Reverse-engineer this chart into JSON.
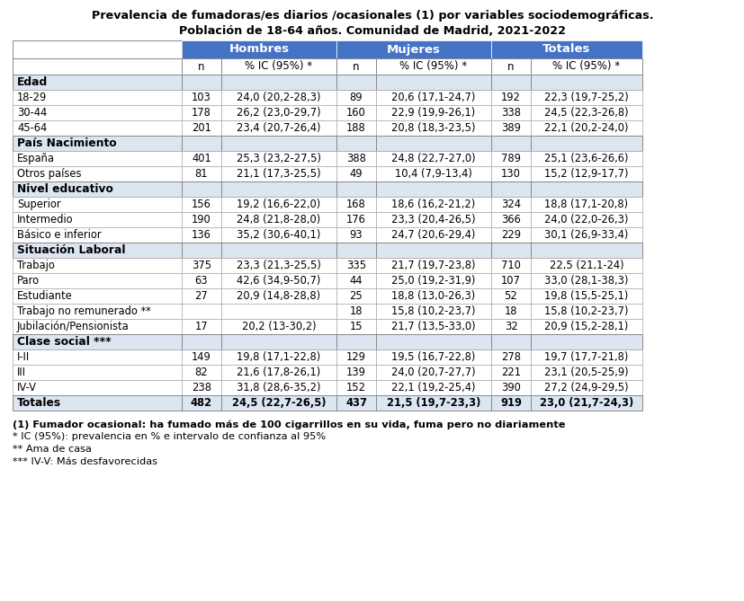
{
  "title_line1": "Prevalencia de fumadoras/es diarios /ocasionales (1) por variables sociodemográficas.",
  "title_line2": "Población de 18-64 años. Comunidad de Madrid, 2021-2022",
  "col_header_bg": "#4472c4",
  "col_header_fg": "#ffffff",
  "section_bg": "#dce6f1",
  "totals_bg": "#dce6f1",
  "section_rows": [
    {
      "label": "Edad",
      "is_section": true
    },
    {
      "label": "18-29",
      "is_section": false,
      "hombres_n": "103",
      "hombres_ic": "24,0 (20,2-28,3)",
      "mujeres_n": "89",
      "mujeres_ic": "20,6 (17,1-24,7)",
      "totales_n": "192",
      "totales_ic": "22,3 (19,7-25,2)"
    },
    {
      "label": "30-44",
      "is_section": false,
      "hombres_n": "178",
      "hombres_ic": "26,2 (23,0-29,7)",
      "mujeres_n": "160",
      "mujeres_ic": "22,9 (19,9-26,1)",
      "totales_n": "338",
      "totales_ic": "24,5 (22,3-26,8)"
    },
    {
      "label": "45-64",
      "is_section": false,
      "hombres_n": "201",
      "hombres_ic": "23,4 (20,7-26,4)",
      "mujeres_n": "188",
      "mujeres_ic": "20,8 (18,3-23,5)",
      "totales_n": "389",
      "totales_ic": "22,1 (20,2-24,0)"
    },
    {
      "label": "País Nacimiento",
      "is_section": true
    },
    {
      "label": "España",
      "is_section": false,
      "hombres_n": "401",
      "hombres_ic": "25,3 (23,2-27,5)",
      "mujeres_n": "388",
      "mujeres_ic": "24,8 (22,7-27,0)",
      "totales_n": "789",
      "totales_ic": "25,1 (23,6-26,6)"
    },
    {
      "label": "Otros países",
      "is_section": false,
      "hombres_n": "81",
      "hombres_ic": "21,1 (17,3-25,5)",
      "mujeres_n": "49",
      "mujeres_ic": "10,4 (7,9-13,4)",
      "totales_n": "130",
      "totales_ic": "15,2 (12,9-17,7)"
    },
    {
      "label": "Nivel educativo",
      "is_section": true
    },
    {
      "label": "Superior",
      "is_section": false,
      "hombres_n": "156",
      "hombres_ic": "19,2 (16,6-22,0)",
      "mujeres_n": "168",
      "mujeres_ic": "18,6 (16,2-21,2)",
      "totales_n": "324",
      "totales_ic": "18,8 (17,1-20,8)"
    },
    {
      "label": "Intermedio",
      "is_section": false,
      "hombres_n": "190",
      "hombres_ic": "24,8 (21,8-28,0)",
      "mujeres_n": "176",
      "mujeres_ic": "23,3 (20,4-26,5)",
      "totales_n": "366",
      "totales_ic": "24,0 (22,0-26,3)"
    },
    {
      "label": "Básico e inferior",
      "is_section": false,
      "hombres_n": "136",
      "hombres_ic": "35,2 (30,6-40,1)",
      "mujeres_n": "93",
      "mujeres_ic": "24,7 (20,6-29,4)",
      "totales_n": "229",
      "totales_ic": "30,1 (26,9-33,4)"
    },
    {
      "label": "Situación Laboral",
      "is_section": true
    },
    {
      "label": "Trabajo",
      "is_section": false,
      "hombres_n": "375",
      "hombres_ic": "23,3 (21,3-25,5)",
      "mujeres_n": "335",
      "mujeres_ic": "21,7 (19,7-23,8)",
      "totales_n": "710",
      "totales_ic": "22,5 (21,1-24)"
    },
    {
      "label": "Paro",
      "is_section": false,
      "hombres_n": "63",
      "hombres_ic": "42,6 (34,9-50,7)",
      "mujeres_n": "44",
      "mujeres_ic": "25,0 (19,2-31,9)",
      "totales_n": "107",
      "totales_ic": "33,0 (28,1-38,3)"
    },
    {
      "label": "Estudiante",
      "is_section": false,
      "hombres_n": "27",
      "hombres_ic": "20,9 (14,8-28,8)",
      "mujeres_n": "25",
      "mujeres_ic": "18,8 (13,0-26,3)",
      "totales_n": "52",
      "totales_ic": "19,8 (15,5-25,1)"
    },
    {
      "label": "Trabajo no remunerado **",
      "is_section": false,
      "hombres_n": "",
      "hombres_ic": "",
      "mujeres_n": "18",
      "mujeres_ic": "15,8 (10,2-23,7)",
      "totales_n": "18",
      "totales_ic": "15,8 (10,2-23,7)"
    },
    {
      "label": "Jubilación/Pensionista",
      "is_section": false,
      "hombres_n": "17",
      "hombres_ic": "20,2 (13-30,2)",
      "mujeres_n": "15",
      "mujeres_ic": "21,7 (13,5-33,0)",
      "totales_n": "32",
      "totales_ic": "20,9 (15,2-28,1)"
    },
    {
      "label": "Clase social ***",
      "is_section": true
    },
    {
      "label": "I-II",
      "is_section": false,
      "hombres_n": "149",
      "hombres_ic": "19,8 (17,1-22,8)",
      "mujeres_n": "129",
      "mujeres_ic": "19,5 (16,7-22,8)",
      "totales_n": "278",
      "totales_ic": "19,7 (17,7-21,8)"
    },
    {
      "label": "III",
      "is_section": false,
      "hombres_n": "82",
      "hombres_ic": "21,6 (17,8-26,1)",
      "mujeres_n": "139",
      "mujeres_ic": "24,0 (20,7-27,7)",
      "totales_n": "221",
      "totales_ic": "23,1 (20,5-25,9)"
    },
    {
      "label": "IV-V",
      "is_section": false,
      "hombres_n": "238",
      "hombres_ic": "31,8 (28,6-35,2)",
      "mujeres_n": "152",
      "mujeres_ic": "22,1 (19,2-25,4)",
      "totales_n": "390",
      "totales_ic": "27,2 (24,9-29,5)"
    }
  ],
  "totals_row": {
    "label": "Totales",
    "hombres_n": "482",
    "hombres_ic": "24,5 (22,7-26,5)",
    "mujeres_n": "437",
    "mujeres_ic": "21,5 (19,7-23,3)",
    "totales_n": "919",
    "totales_ic": "23,0 (21,7-24,3)"
  },
  "footnotes": [
    "(1) Fumador ocasional: ha fumado más de 100 cigarrillos en su vida, fuma pero no diariamente",
    "* IC (95%): prevalencia en % e intervalo de confianza al 95%",
    "** Ama de casa",
    "*** IV-V: Más desfavorecidas"
  ]
}
